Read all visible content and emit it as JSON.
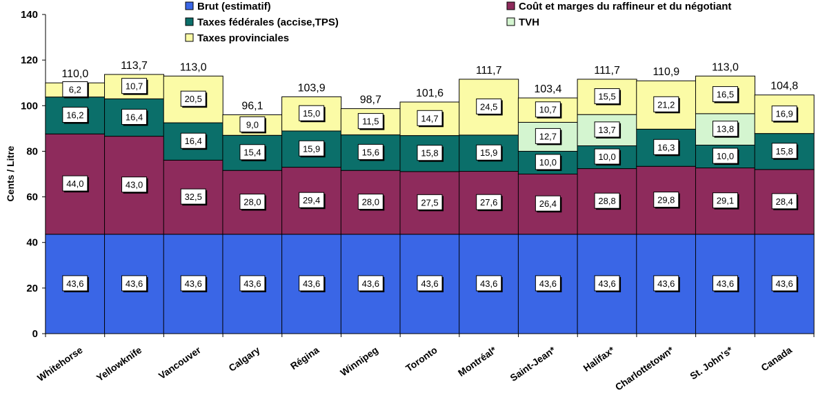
{
  "chart_data": {
    "type": "bar",
    "stacked": true,
    "ylabel": "Cents / Litre",
    "ylim": [
      0,
      140
    ],
    "yticks": [
      "0",
      "20",
      "40",
      "60",
      "80",
      "100",
      "120",
      "140"
    ],
    "categories": [
      "Whitehorse",
      "Yellowknife",
      "Vancouver",
      "Calgary",
      "Régina",
      "Winnipeg",
      "Toronto",
      "Montréal*",
      "Saint-Jean*",
      "Halifax*",
      "Charlottetown*",
      "St. John's*",
      "Canada"
    ],
    "totals": [
      "110,0",
      "113,7",
      "113,0",
      "96,1",
      "103,9",
      "98,7",
      "101,6",
      "111,7",
      "103,4",
      "111,7",
      "110,9",
      "113,0",
      "104,8"
    ],
    "series": [
      {
        "name": "Brut (estimatif)",
        "color": "#3a66e6",
        "values": [
          43.6,
          43.6,
          43.6,
          43.6,
          43.6,
          43.6,
          43.6,
          43.6,
          43.6,
          43.6,
          43.6,
          43.6,
          43.6
        ],
        "labels": [
          "43,6",
          "43,6",
          "43,6",
          "43,6",
          "43,6",
          "43,6",
          "43,6",
          "43,6",
          "43,6",
          "43,6",
          "43,6",
          "43,6",
          "43,6"
        ]
      },
      {
        "name": "Coût et marges du raffineur et du négotiant",
        "color": "#8e2b5c",
        "values": [
          44.0,
          43.0,
          32.5,
          28.0,
          29.4,
          28.0,
          27.5,
          27.6,
          26.4,
          28.8,
          29.8,
          29.1,
          28.4
        ],
        "labels": [
          "44,0",
          "43,0",
          "32,5",
          "28,0",
          "29,4",
          "28,0",
          "27,5",
          "27,6",
          "26,4",
          "28,8",
          "29,8",
          "29,1",
          "28,4"
        ]
      },
      {
        "name": "Taxes fédérales (accise,TPS)",
        "color": "#0b6f6a",
        "values": [
          16.2,
          16.4,
          16.4,
          15.4,
          15.9,
          15.6,
          15.8,
          15.9,
          10.0,
          10.0,
          16.3,
          10.0,
          15.8
        ],
        "labels": [
          "16,2",
          "16,4",
          "16,4",
          "15,4",
          "15,9",
          "15,6",
          "15,8",
          "15,9",
          "10,0",
          "10,0",
          "16,3",
          "10,0",
          "15,8"
        ]
      },
      {
        "name": "TVH",
        "color": "#d4f5d0",
        "values": [
          0,
          0,
          0,
          0,
          0,
          0,
          0,
          0,
          12.7,
          13.7,
          0,
          13.8,
          0
        ],
        "labels": [
          "",
          "",
          "",
          "",
          "",
          "",
          "",
          "",
          "12,7",
          "13,7",
          "",
          "13,8",
          ""
        ]
      },
      {
        "name": "Taxes provinciales",
        "color": "#fbfba6",
        "values": [
          6.2,
          10.7,
          20.5,
          9.0,
          15.0,
          11.5,
          14.7,
          24.5,
          10.7,
          15.5,
          21.2,
          16.5,
          16.9
        ],
        "labels": [
          "6,2",
          "10,7",
          "20,5",
          "9,0",
          "15,0",
          "11,5",
          "14,7",
          "24,5",
          "10,7",
          "15,5",
          "21,2",
          "16,5",
          "16,9"
        ]
      }
    ],
    "legend": {
      "placement": "top"
    },
    "grid": false
  }
}
